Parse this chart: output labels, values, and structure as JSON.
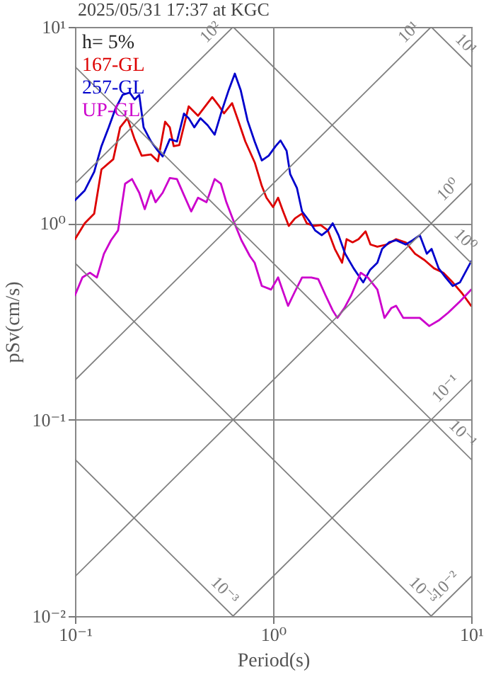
{
  "chart_data": {
    "type": "line",
    "title": "2025/05/31 17:37 at KGC",
    "xlabel": "Period(s)",
    "ylabel": "pSv(cm/s)",
    "annotations": [
      "h= 5%"
    ],
    "log": "xy",
    "grid": true,
    "legend": "top left",
    "xlim": [
      0.1,
      10
    ],
    "ylim": [
      0.01,
      10
    ],
    "xticks": [
      {
        "value": 0.1,
        "label": "10⁻¹"
      },
      {
        "value": 1,
        "label": "10⁰"
      },
      {
        "value": 10,
        "label": "10¹"
      }
    ],
    "yticks": [
      {
        "value": 0.01,
        "label": "10⁻²"
      },
      {
        "value": 0.1,
        "label": "10⁻¹"
      },
      {
        "value": 1,
        "label": "10⁰"
      },
      {
        "value": 10,
        "label": "10¹"
      }
    ],
    "series": [
      {
        "name": "167-GL",
        "color": "#dd0000",
        "x": [
          0.1,
          0.112,
          0.125,
          0.136,
          0.156,
          0.169,
          0.184,
          0.2,
          0.217,
          0.242,
          0.262,
          0.285,
          0.301,
          0.315,
          0.336,
          0.375,
          0.418,
          0.493,
          0.535,
          0.565,
          0.621,
          0.666,
          0.724,
          0.808,
          0.877,
          0.926,
          1.0,
          1.06,
          1.12,
          1.2,
          1.29,
          1.4,
          1.48,
          1.6,
          1.74,
          1.89,
          2.05,
          2.23,
          2.35,
          2.52,
          2.7,
          2.93,
          3.1,
          3.36,
          3.75,
          4.18,
          4.67,
          5.21,
          5.81,
          6.49,
          7.24,
          8.07,
          9.0,
          10
        ],
        "values": [
          0.83,
          1.0,
          1.12,
          1.88,
          2.12,
          3.08,
          3.43,
          2.68,
          2.21,
          2.24,
          2.07,
          3.29,
          3.08,
          2.47,
          2.5,
          3.94,
          3.53,
          4.39,
          3.94,
          3.63,
          4.09,
          3.34,
          2.61,
          2.04,
          1.55,
          1.35,
          1.21,
          1.35,
          1.16,
          0.97,
          1.06,
          1.12,
          1.0,
          0.97,
          0.98,
          0.92,
          0.74,
          0.63,
          0.83,
          0.8,
          0.83,
          0.91,
          0.78,
          0.76,
          0.78,
          0.83,
          0.8,
          0.7,
          0.65,
          0.59,
          0.56,
          0.5,
          0.44,
          0.38
        ]
      },
      {
        "name": "257-GL",
        "color": "#0000cc",
        "x": [
          0.1,
          0.112,
          0.125,
          0.136,
          0.148,
          0.16,
          0.174,
          0.189,
          0.2,
          0.211,
          0.222,
          0.242,
          0.262,
          0.277,
          0.301,
          0.327,
          0.355,
          0.375,
          0.4,
          0.43,
          0.467,
          0.507,
          0.55,
          0.597,
          0.641,
          0.686,
          0.743,
          0.807,
          0.877,
          0.95,
          1.03,
          1.09,
          1.17,
          1.22,
          1.32,
          1.4,
          1.52,
          1.63,
          1.76,
          1.89,
          2.0,
          2.14,
          2.31,
          2.55,
          2.85,
          3.09,
          3.36,
          3.55,
          3.85,
          4.18,
          4.67,
          5.07,
          5.5,
          5.97,
          6.31,
          6.85,
          7.43,
          8.07,
          8.77,
          10
        ],
        "values": [
          1.31,
          1.47,
          1.83,
          2.47,
          3.08,
          3.83,
          4.51,
          4.63,
          4.27,
          4.51,
          3.08,
          2.61,
          2.34,
          2.19,
          2.68,
          2.61,
          3.62,
          3.43,
          3.08,
          3.43,
          3.16,
          2.83,
          3.72,
          4.77,
          5.78,
          4.77,
          3.34,
          2.61,
          2.09,
          2.21,
          2.47,
          2.64,
          2.34,
          1.78,
          1.51,
          1.15,
          1.03,
          0.92,
          0.87,
          0.92,
          1.0,
          0.87,
          0.7,
          0.59,
          0.5,
          0.58,
          0.63,
          0.74,
          0.8,
          0.82,
          0.78,
          0.82,
          0.87,
          0.7,
          0.74,
          0.59,
          0.53,
          0.48,
          0.5,
          0.64
        ]
      },
      {
        "name": "UP-GL",
        "color": "#cc00cc",
        "x": [
          0.1,
          0.109,
          0.119,
          0.129,
          0.14,
          0.152,
          0.165,
          0.179,
          0.194,
          0.211,
          0.225,
          0.242,
          0.255,
          0.277,
          0.301,
          0.327,
          0.355,
          0.386,
          0.418,
          0.461,
          0.507,
          0.545,
          0.581,
          0.631,
          0.692,
          0.764,
          0.807,
          0.877,
          0.977,
          1.06,
          1.19,
          1.29,
          1.4,
          1.56,
          1.69,
          1.84,
          2.0,
          2.11,
          2.29,
          2.48,
          2.77,
          3.01,
          3.36,
          3.65,
          3.95,
          4.18,
          4.54,
          4.93,
          5.5,
          6.14,
          6.85,
          7.64,
          8.77,
          10
        ],
        "values": [
          0.43,
          0.53,
          0.56,
          0.53,
          0.7,
          0.82,
          0.92,
          1.59,
          1.68,
          1.43,
          1.18,
          1.47,
          1.28,
          1.43,
          1.7,
          1.68,
          1.39,
          1.15,
          1.35,
          1.28,
          1.68,
          1.59,
          1.28,
          1.03,
          0.82,
          0.68,
          0.63,
          0.48,
          0.46,
          0.53,
          0.38,
          0.45,
          0.53,
          0.53,
          0.52,
          0.43,
          0.36,
          0.33,
          0.37,
          0.43,
          0.56,
          0.53,
          0.46,
          0.33,
          0.37,
          0.38,
          0.33,
          0.33,
          0.33,
          0.3,
          0.32,
          0.35,
          0.4,
          0.46
        ]
      },
      {
        "name": "10²",
        "type": "line",
        "color": "#808080",
        "x": [
          0.1,
          0.628
        ],
        "values": [
          1.59,
          10
        ]
      },
      {
        "name": "10¹",
        "type": "line",
        "color": "#808080",
        "x": [
          0.1,
          6.28
        ],
        "values": [
          0.159,
          10
        ]
      },
      {
        "name": "10⁰",
        "type": "line",
        "color": "#808080",
        "x": [
          0.1,
          10
        ],
        "values": [
          0.0159,
          1.59
        ]
      },
      {
        "name": "10⁻¹",
        "type": "line",
        "color": "#808080",
        "x": [
          0.628,
          10
        ],
        "values": [
          0.01,
          0.159
        ]
      },
      {
        "name": "10⁻²",
        "type": "line",
        "color": "#808080",
        "x": [
          6.28,
          10
        ],
        "values": [
          0.01,
          0.0159
        ]
      },
      {
        "name": "10¹",
        "type": "line",
        "color": "#808080",
        "x": [
          6.28,
          10
        ],
        "values": [
          10,
          6.28
        ]
      },
      {
        "name": "10⁰",
        "type": "line",
        "color": "#808080",
        "x": [
          0.628,
          10
        ],
        "values": [
          10,
          0.628
        ]
      },
      {
        "name": "10⁻¹",
        "type": "line",
        "color": "#808080",
        "x": [
          0.1,
          10
        ],
        "values": [
          6.28,
          0.0628
        ]
      },
      {
        "name": "10⁻³",
        "type": "line",
        "color": "#808080",
        "x": [
          0.1,
          6.28
        ],
        "values": [
          0.628,
          0.01
        ]
      },
      {
        "name": "10⁻³",
        "type": "line",
        "color": "#808080",
        "x": [
          0.1,
          0.628
        ],
        "values": [
          0.0628,
          0.01
        ]
      }
    ]
  }
}
